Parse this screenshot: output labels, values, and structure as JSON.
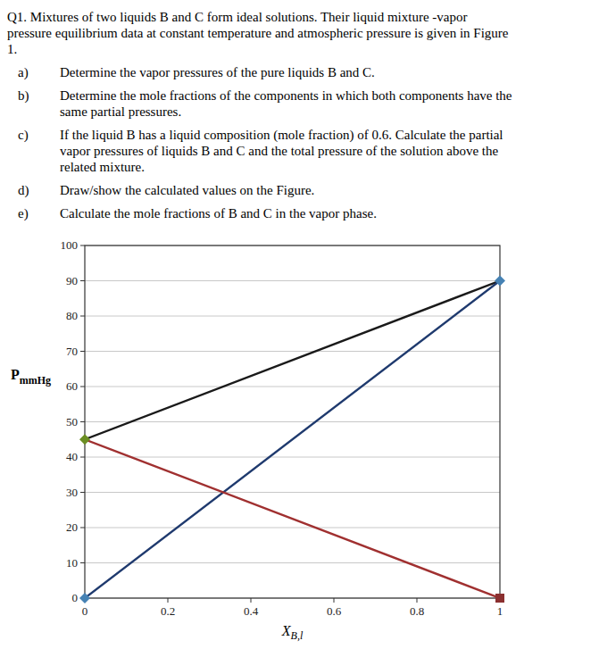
{
  "chart_data": {
    "type": "line",
    "annotations": [
      {
        "lines": [
          "Q1. Mixtures of two liquids B and C form ideal solutions. Their liquid mixture -vapor",
          "pressure equilibrium data at constant temperature and atmospheric pressure is given in Figure",
          "1."
        ]
      },
      {
        "label": "a)",
        "lines": [
          "Determine the vapor pressures of the pure liquids B and C."
        ]
      },
      {
        "label": "b)",
        "lines": [
          "Determine the mole fractions of the components in which both components have the",
          "same partial pressures."
        ]
      },
      {
        "label": "c)",
        "lines": [
          "If the liquid B has a liquid composition (mole fraction) of 0.6. Calculate the partial",
          "vapor pressures of liquids B and C and the total pressure of the solution above the",
          "related mixture."
        ]
      },
      {
        "label": "d)",
        "lines": [
          "Draw/show the calculated values on the Figure."
        ]
      },
      {
        "label": "e)",
        "lines": [
          "Calculate the mole fractions of B and C in the vapor phase."
        ]
      }
    ],
    "xlabel": {
      "main": "X",
      "sub": "B,l"
    },
    "ylabel": {
      "main": "P",
      "sub": "mmHg"
    },
    "series": [
      {
        "x": [
          0,
          1
        ],
        "values": [
          45,
          90
        ],
        "color": "#1a1a1a"
      },
      {
        "x": [
          0,
          1
        ],
        "values": [
          0,
          90
        ],
        "color": "#1f3a6e"
      },
      {
        "x": [
          0,
          1
        ],
        "values": [
          45,
          0
        ],
        "color": "#a03030"
      },
      {
        "type": "scatter",
        "marker": "diamond",
        "x": [
          0
        ],
        "values": [
          45
        ],
        "color": "#6b8e23"
      },
      {
        "type": "scatter",
        "marker": "diamond",
        "x": [
          1
        ],
        "values": [
          90
        ],
        "color": "#4682b4"
      },
      {
        "type": "scatter",
        "marker": "diamond",
        "x": [
          0
        ],
        "values": [
          0
        ],
        "color": "#4682b4"
      },
      {
        "type": "scatter",
        "marker": "square",
        "x": [
          1
        ],
        "values": [
          0
        ],
        "color": "#8b3030"
      }
    ],
    "xlim": [
      0,
      1
    ],
    "ylim": [
      0,
      100
    ],
    "xticks": [
      0,
      0.2,
      0.4,
      0.6,
      0.8,
      1
    ],
    "yticks": [
      0,
      10,
      20,
      30,
      40,
      50,
      60,
      70,
      80,
      90,
      100
    ],
    "grid": "y",
    "grid_color": "#c8c8c8"
  }
}
